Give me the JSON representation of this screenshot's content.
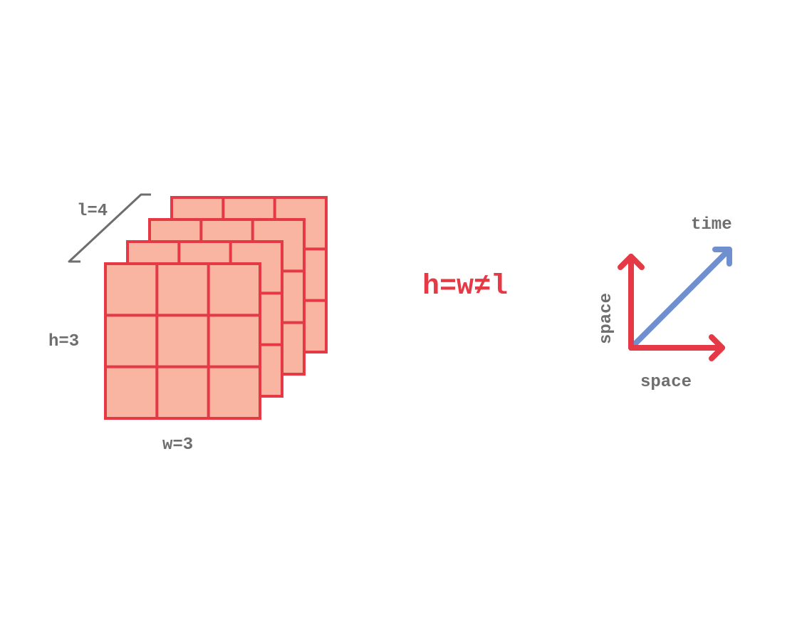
{
  "labels": {
    "depth": "l=4",
    "height": "h=3",
    "width": "w=3",
    "equation": "h=w≠l",
    "axis_time": "time",
    "axis_space_vertical": "space",
    "axis_space_horizontal": "space"
  },
  "grid": {
    "layers": 4,
    "rows": 3,
    "cols": 3
  },
  "colors": {
    "cell_fill": "#f9b4a2",
    "cell_stroke": "#e63946",
    "label_gray": "#6e6e6e",
    "equation_red": "#e63946",
    "space_axis_red": "#e63946",
    "time_axis_blue": "#6f8fcf"
  }
}
